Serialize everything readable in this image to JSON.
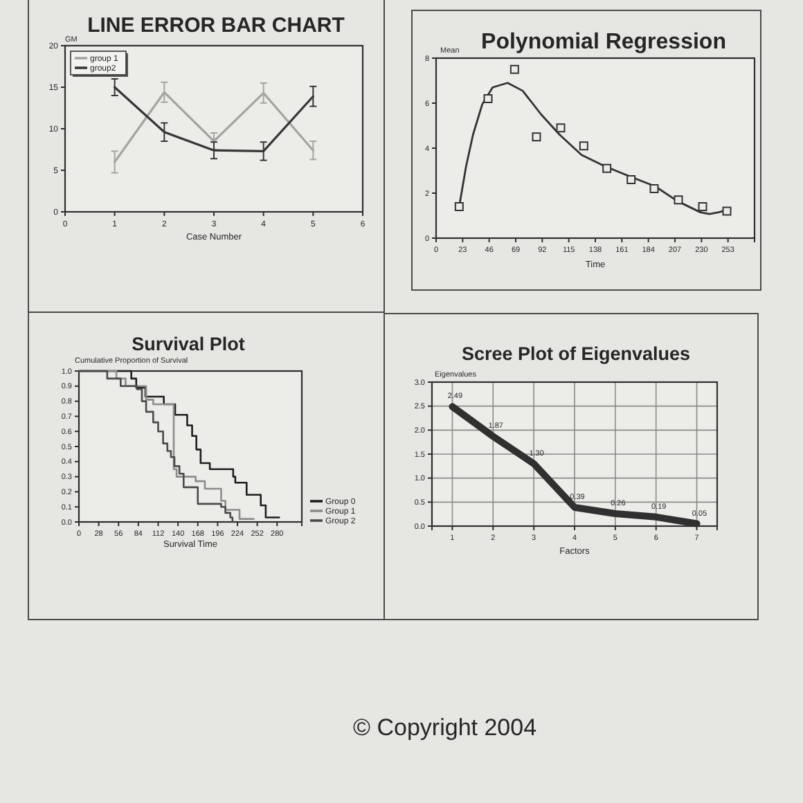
{
  "chart_data": [
    {
      "type": "line",
      "title": "LINE ERROR BAR CHART",
      "xlabel": "Case Number",
      "ylabel": "GM",
      "x": [
        1,
        2,
        3,
        4,
        5
      ],
      "xlim": [
        0,
        6
      ],
      "xticks": [
        0,
        1,
        2,
        3,
        4,
        5,
        6
      ],
      "ylim": [
        0,
        20
      ],
      "yticks": [
        0,
        5,
        10,
        15,
        20
      ],
      "legend": "top left",
      "series": [
        {
          "name": "group 1",
          "color": "#a4a4a0",
          "values": [
            6.0,
            14.4,
            8.5,
            14.3,
            7.4
          ],
          "errors": [
            1.3,
            1.2,
            1.0,
            1.2,
            1.1
          ]
        },
        {
          "name": "group2",
          "color": "#363636",
          "values": [
            15.0,
            9.6,
            7.4,
            7.3,
            13.9
          ],
          "errors": [
            1.0,
            1.1,
            1.0,
            1.1,
            1.2
          ]
        }
      ]
    },
    {
      "type": "scatter",
      "title": "Polynomial Regression",
      "xlabel": "Time",
      "ylabel": "Mean",
      "xlim": [
        0,
        276
      ],
      "xticks": [
        0,
        23,
        46,
        69,
        92,
        115,
        138,
        161,
        184,
        207,
        230,
        253
      ],
      "ylim": [
        0,
        8
      ],
      "yticks": [
        0,
        2,
        4,
        6,
        8
      ],
      "series": [
        {
          "marker": "square",
          "color": "#333333",
          "x": [
            20,
            45,
            68,
            87,
            108,
            128,
            148,
            169,
            189,
            210,
            231,
            252
          ],
          "values": [
            1.4,
            6.2,
            7.5,
            4.5,
            4.9,
            4.1,
            3.1,
            2.6,
            2.2,
            1.7,
            1.4,
            1.2
          ]
        },
        {
          "type": "line",
          "color": "#333333",
          "x": [
            20,
            26,
            32,
            40,
            49,
            62,
            75,
            91,
            107,
            126,
            146,
            170,
            190,
            209,
            229,
            237,
            245,
            255
          ],
          "values": [
            1.4,
            3.2,
            4.6,
            5.95,
            6.7,
            6.9,
            6.55,
            5.5,
            4.6,
            3.7,
            3.2,
            2.7,
            2.3,
            1.65,
            1.15,
            1.07,
            1.15,
            1.3
          ]
        }
      ]
    },
    {
      "type": "step",
      "title": "Survival Plot",
      "xlabel": "Survival Time",
      "ylabel": "Cumulative Proportion of Survival",
      "xlim": [
        0,
        315
      ],
      "xticks": [
        0,
        28,
        56,
        84,
        112,
        140,
        168,
        196,
        224,
        252,
        280
      ],
      "ylim": [
        0,
        1
      ],
      "yticks": [
        {
          "value": 0,
          "label": "0.0"
        },
        0.1,
        0.2,
        0.3,
        0.4,
        0.5,
        0.6,
        0.7,
        0.8,
        0.9,
        {
          "value": 1,
          "label": "1.0"
        }
      ],
      "legend": "right",
      "series": [
        {
          "name": "Group 0",
          "color": "#1e1e1e",
          "x": [
            0,
            74,
            81,
            94,
            120,
            136,
            153,
            160,
            166,
            172,
            185,
            218,
            221,
            237,
            257,
            264,
            283
          ],
          "values": [
            1.0,
            0.95,
            0.89,
            0.83,
            0.78,
            0.71,
            0.64,
            0.57,
            0.48,
            0.39,
            0.35,
            0.3,
            0.26,
            0.18,
            0.11,
            0.03,
            0.03
          ]
        },
        {
          "name": "Group 1",
          "color": "#8c8c8c",
          "x": [
            0,
            53,
            66,
            95,
            105,
            134,
            138,
            165,
            178,
            201,
            207,
            227,
            247
          ],
          "values": [
            1.0,
            0.95,
            0.9,
            0.81,
            0.78,
            0.35,
            0.3,
            0.27,
            0.22,
            0.14,
            0.08,
            0.02,
            0.02
          ]
        },
        {
          "name": "Group 2",
          "color": "#4a4a4a",
          "x": [
            0,
            40,
            59,
            82,
            89,
            95,
            105,
            112,
            119,
            125,
            130,
            135,
            142,
            148,
            168,
            201,
            207,
            214,
            217
          ],
          "values": [
            1.0,
            0.95,
            0.9,
            0.88,
            0.8,
            0.73,
            0.66,
            0.6,
            0.52,
            0.47,
            0.43,
            0.37,
            0.32,
            0.23,
            0.12,
            0.1,
            0.06,
            0.03,
            0.0
          ]
        }
      ]
    },
    {
      "type": "line",
      "title": "Scree Plot of Eigenvalues",
      "xlabel": "Factors",
      "ylabel": "Eigenvalues",
      "categories": [
        "1",
        "2",
        "3",
        "4",
        "5",
        "6",
        "7"
      ],
      "values": [
        2.49,
        1.87,
        1.3,
        0.39,
        0.26,
        0.19,
        0.05
      ],
      "value_labels": [
        "2.49",
        "1.87",
        "1.30",
        "0.39",
        "0.26",
        "0.19",
        "0.05"
      ],
      "color": "#303030",
      "ylim": [
        0,
        3
      ],
      "yticks": [
        {
          "value": 0,
          "label": "0.0"
        },
        0.5,
        {
          "value": 1,
          "label": "1.0"
        },
        1.5,
        {
          "value": 2,
          "label": "2.0"
        },
        2.5,
        {
          "value": 3,
          "label": "3.0"
        }
      ],
      "grid": true,
      "annotations": [
        "© Copyright 2004"
      ]
    }
  ]
}
